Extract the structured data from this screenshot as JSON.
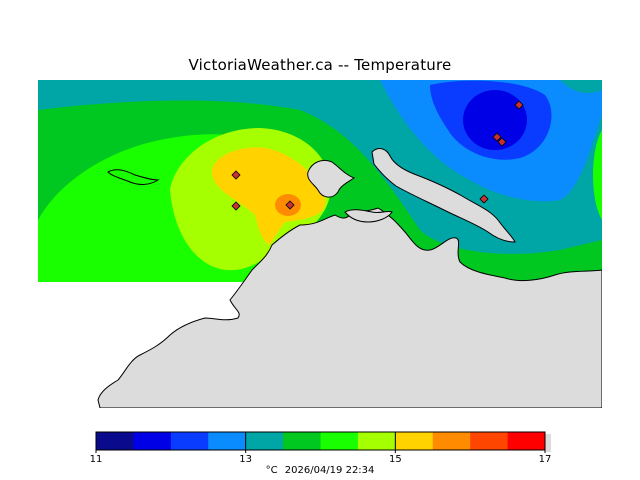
{
  "title": "VictoriaWeather.ca -- Temperature",
  "legend": {
    "unit": "°C",
    "timestamp": "2026/04/19 22:34",
    "min": 11,
    "max": 17,
    "tick_labels": [
      "11",
      "13",
      "15",
      "17"
    ],
    "tick_values": [
      11,
      13,
      15,
      17
    ],
    "colors": [
      "#0a0a8c",
      "#0000e6",
      "#0a3cff",
      "#0a8cff",
      "#00a5a5",
      "#00c820",
      "#19ff00",
      "#a5ff00",
      "#ffd200",
      "#ff8c00",
      "#ff4600",
      "#ff0000"
    ]
  },
  "colors": {
    "land": "#dcdcdc",
    "coast": "#000000",
    "station_marker": "#c83232"
  }
}
